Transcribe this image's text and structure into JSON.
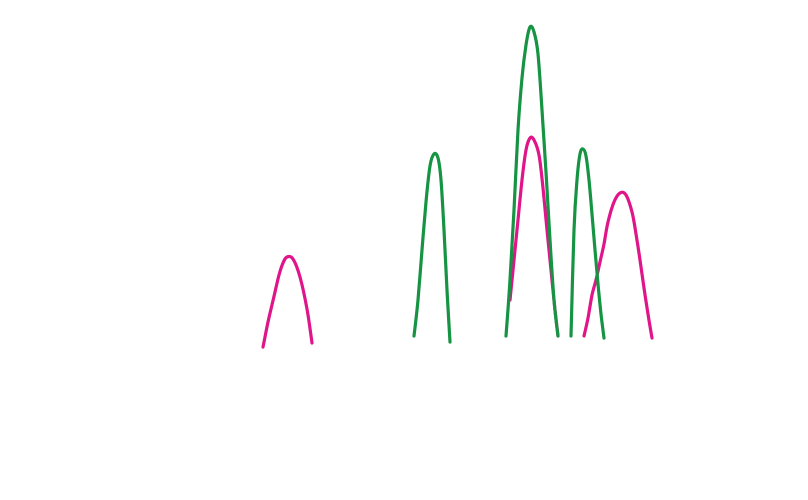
{
  "chart_data": {
    "type": "line",
    "title": "",
    "xlabel": "",
    "ylabel": "",
    "grid": false,
    "legend": "none",
    "series": [
      {
        "color": "#e0158a",
        "peaks": [
          {
            "x": [
              0,
              2,
              5,
              8,
              12,
              16,
              20,
              24,
              30,
              37,
              44,
              49
            ],
            "y": [
              0,
              10,
              25,
              38,
              55,
              72,
              84,
              90,
              88,
              70,
              38,
              4
            ]
          },
          {
            "x": [
              0,
              4,
              8,
              12,
              16,
              20,
              24,
              29,
              33,
              37,
              41,
              45,
              48
            ],
            "y": [
              40,
              80,
              120,
              160,
              190,
              202,
              200,
              185,
              152,
              110,
              70,
              30,
              4
            ]
          },
          {
            "x": [
              0,
              4,
              8,
              12,
              16,
              20,
              24,
              30,
              36,
              42,
              48,
              52,
              56,
              60,
              64,
              68
            ],
            "y": [
              4,
              22,
              45,
              60,
              78,
              96,
              118,
              138,
              147,
              145,
              128,
              106,
              80,
              52,
              26,
              2
            ]
          }
        ]
      },
      {
        "color": "#169444",
        "peaks": [
          {
            "x": [
              0,
              4,
              8,
              12,
              16,
              20,
              24,
              27,
              30,
              33,
              36
            ],
            "y": [
              4,
              40,
              90,
              138,
              174,
              186,
              182,
              160,
              110,
              50,
              -2
            ]
          },
          {
            "x": [
              0,
              4,
              8,
              12,
              16,
              20,
              24,
              28,
              32,
              36,
              40,
              44,
              48,
              52
            ],
            "y": [
              4,
              60,
              130,
              210,
              262,
              295,
              313,
              308,
              286,
              230,
              168,
              100,
              40,
              4
            ]
          },
          {
            "x": [
              0,
              3,
              6,
              9,
              12,
              15,
              18,
              21,
              24,
              27,
              30,
              33
            ],
            "y": [
              4,
              110,
              160,
              186,
              191,
              184,
              160,
              126,
              90,
              56,
              26,
              2
            ]
          }
        ]
      }
    ]
  }
}
